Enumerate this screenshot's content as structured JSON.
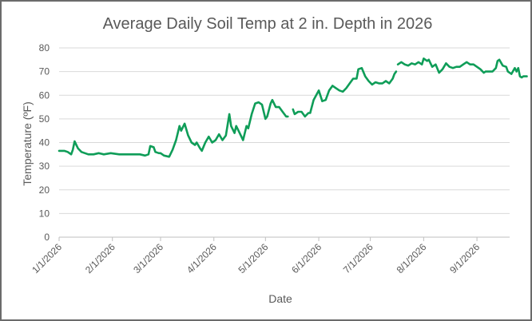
{
  "chart_data": {
    "type": "line",
    "title": "Average Daily Soil Temp at 2 in. Depth in 2026",
    "xlabel": "Date",
    "ylabel": "Temperature (ºF)",
    "ylim": [
      0,
      80
    ],
    "yticks": [
      0,
      10,
      20,
      30,
      40,
      50,
      60,
      70,
      80
    ],
    "xlim": [
      "2026-01-01",
      "2026-09-20"
    ],
    "xticks": [
      {
        "date": "2026-01-01",
        "label": "1/1/2026"
      },
      {
        "date": "2026-02-01",
        "label": "2/1/2026"
      },
      {
        "date": "2026-03-01",
        "label": "3/1/2026"
      },
      {
        "date": "2026-04-01",
        "label": "4/1/2026"
      },
      {
        "date": "2026-05-01",
        "label": "5/1/2026"
      },
      {
        "date": "2026-06-01",
        "label": "6/1/2026"
      },
      {
        "date": "2026-07-01",
        "label": "7/1/2026"
      },
      {
        "date": "2026-08-01",
        "label": "8/1/2026"
      },
      {
        "date": "2026-09-01",
        "label": "9/1/2026"
      }
    ],
    "grid": "horizontal",
    "legend": "none",
    "line_color": "#0f9d58",
    "series": [
      {
        "segments": [
          [
            [
              "2026-01-01",
              36.5
            ],
            [
              "2026-01-04",
              36.5
            ],
            [
              "2026-01-06",
              36
            ],
            [
              "2026-01-08",
              35
            ],
            [
              "2026-01-09",
              37
            ],
            [
              "2026-01-10",
              40.5
            ],
            [
              "2026-01-12",
              37.5
            ],
            [
              "2026-01-14",
              36
            ],
            [
              "2026-01-16",
              35.5
            ],
            [
              "2026-01-18",
              35
            ],
            [
              "2026-01-21",
              35
            ],
            [
              "2026-01-24",
              35.5
            ],
            [
              "2026-01-27",
              35
            ],
            [
              "2026-01-31",
              35.5
            ],
            [
              "2026-02-05",
              35
            ],
            [
              "2026-02-12",
              35
            ],
            [
              "2026-02-17",
              35
            ],
            [
              "2026-02-20",
              34.5
            ],
            [
              "2026-02-22",
              35
            ],
            [
              "2026-02-23",
              38.5
            ],
            [
              "2026-02-25",
              38
            ],
            [
              "2026-02-26",
              36
            ],
            [
              "2026-02-28",
              35.5
            ],
            [
              "2026-03-01",
              35.5
            ],
            [
              "2026-03-03",
              34.5
            ],
            [
              "2026-03-06",
              34
            ],
            [
              "2026-03-08",
              37
            ],
            [
              "2026-03-10",
              41
            ],
            [
              "2026-03-12",
              47
            ],
            [
              "2026-03-13",
              45
            ],
            [
              "2026-03-15",
              48
            ],
            [
              "2026-03-17",
              43
            ],
            [
              "2026-03-19",
              40
            ],
            [
              "2026-03-21",
              39
            ],
            [
              "2026-03-22",
              40
            ],
            [
              "2026-03-24",
              37.5
            ],
            [
              "2026-03-25",
              36.5
            ],
            [
              "2026-03-27",
              40
            ],
            [
              "2026-03-29",
              42.5
            ],
            [
              "2026-03-31",
              40
            ],
            [
              "2026-04-02",
              41
            ],
            [
              "2026-04-04",
              43.5
            ],
            [
              "2026-04-06",
              41
            ],
            [
              "2026-04-08",
              43
            ],
            [
              "2026-04-10",
              52
            ],
            [
              "2026-04-11",
              47
            ],
            [
              "2026-04-13",
              44
            ],
            [
              "2026-04-14",
              47
            ],
            [
              "2026-04-16",
              44
            ],
            [
              "2026-04-18",
              41
            ],
            [
              "2026-04-20",
              47
            ],
            [
              "2026-04-21",
              46
            ],
            [
              "2026-04-23",
              52
            ],
            [
              "2026-04-25",
              56.5
            ],
            [
              "2026-04-27",
              57
            ],
            [
              "2026-04-29",
              56
            ],
            [
              "2026-05-01",
              50
            ],
            [
              "2026-05-02",
              51
            ],
            [
              "2026-05-04",
              56.5
            ],
            [
              "2026-05-05",
              58
            ],
            [
              "2026-05-07",
              55
            ],
            [
              "2026-05-09",
              55
            ],
            [
              "2026-05-11",
              53
            ],
            [
              "2026-05-13",
              51
            ],
            [
              "2026-05-14",
              51
            ]
          ],
          [
            [
              "2026-05-17",
              54
            ],
            [
              "2026-05-18",
              52
            ],
            [
              "2026-05-20",
              53
            ],
            [
              "2026-05-22",
              53
            ],
            [
              "2026-05-24",
              51
            ],
            [
              "2026-05-26",
              52.5
            ],
            [
              "2026-05-27",
              52.5
            ],
            [
              "2026-05-29",
              58
            ],
            [
              "2026-06-01",
              62
            ],
            [
              "2026-06-03",
              57.5
            ],
            [
              "2026-06-05",
              58
            ],
            [
              "2026-06-07",
              62
            ],
            [
              "2026-06-09",
              64
            ],
            [
              "2026-06-11",
              63
            ],
            [
              "2026-06-13",
              62
            ],
            [
              "2026-06-15",
              61.5
            ],
            [
              "2026-06-17",
              63
            ],
            [
              "2026-06-19",
              65
            ],
            [
              "2026-06-21",
              67
            ],
            [
              "2026-06-23",
              67
            ],
            [
              "2026-06-24",
              71
            ],
            [
              "2026-06-26",
              71.5
            ],
            [
              "2026-06-28",
              68
            ],
            [
              "2026-06-30",
              66
            ],
            [
              "2026-07-02",
              64.5
            ],
            [
              "2026-07-04",
              65.5
            ],
            [
              "2026-07-06",
              65
            ],
            [
              "2026-07-08",
              65
            ],
            [
              "2026-07-10",
              66
            ],
            [
              "2026-07-12",
              65
            ],
            [
              "2026-07-14",
              67
            ],
            [
              "2026-07-15",
              69
            ],
            [
              "2026-07-16",
              70
            ]
          ],
          [
            [
              "2026-07-17",
              73
            ],
            [
              "2026-07-19",
              74
            ],
            [
              "2026-07-21",
              73
            ],
            [
              "2026-07-23",
              72.5
            ],
            [
              "2026-07-25",
              73.5
            ],
            [
              "2026-07-27",
              73
            ],
            [
              "2026-07-29",
              74
            ],
            [
              "2026-07-31",
              73
            ],
            [
              "2026-08-01",
              75.5
            ],
            [
              "2026-08-03",
              74.5
            ],
            [
              "2026-08-04",
              75
            ],
            [
              "2026-08-06",
              72
            ],
            [
              "2026-08-08",
              73
            ],
            [
              "2026-08-10",
              69.5
            ],
            [
              "2026-08-12",
              71
            ],
            [
              "2026-08-14",
              73.5
            ],
            [
              "2026-08-16",
              72
            ],
            [
              "2026-08-18",
              71.5
            ],
            [
              "2026-08-20",
              72
            ],
            [
              "2026-08-22",
              72
            ],
            [
              "2026-08-24",
              73
            ],
            [
              "2026-08-26",
              74
            ],
            [
              "2026-08-28",
              73
            ],
            [
              "2026-08-30",
              73
            ],
            [
              "2026-09-01",
              72
            ],
            [
              "2026-09-03",
              71
            ],
            [
              "2026-09-05",
              69.5
            ],
            [
              "2026-09-06",
              70
            ],
            [
              "2026-09-08",
              70
            ],
            [
              "2026-09-10",
              70
            ],
            [
              "2026-09-12",
              71.5
            ],
            [
              "2026-09-13",
              74.5
            ],
            [
              "2026-09-14",
              75
            ],
            [
              "2026-09-16",
              72.5
            ],
            [
              "2026-09-18",
              72
            ],
            [
              "2026-09-19",
              70
            ],
            [
              "2026-09-21",
              69
            ],
            [
              "2026-09-23",
              71.5
            ],
            [
              "2026-09-24",
              70
            ],
            [
              "2026-09-25",
              71.5
            ],
            [
              "2026-09-26",
              68
            ],
            [
              "2026-09-27",
              67.5
            ],
            [
              "2026-09-28",
              68
            ],
            [
              "2026-09-30",
              68
            ]
          ]
        ]
      }
    ]
  }
}
